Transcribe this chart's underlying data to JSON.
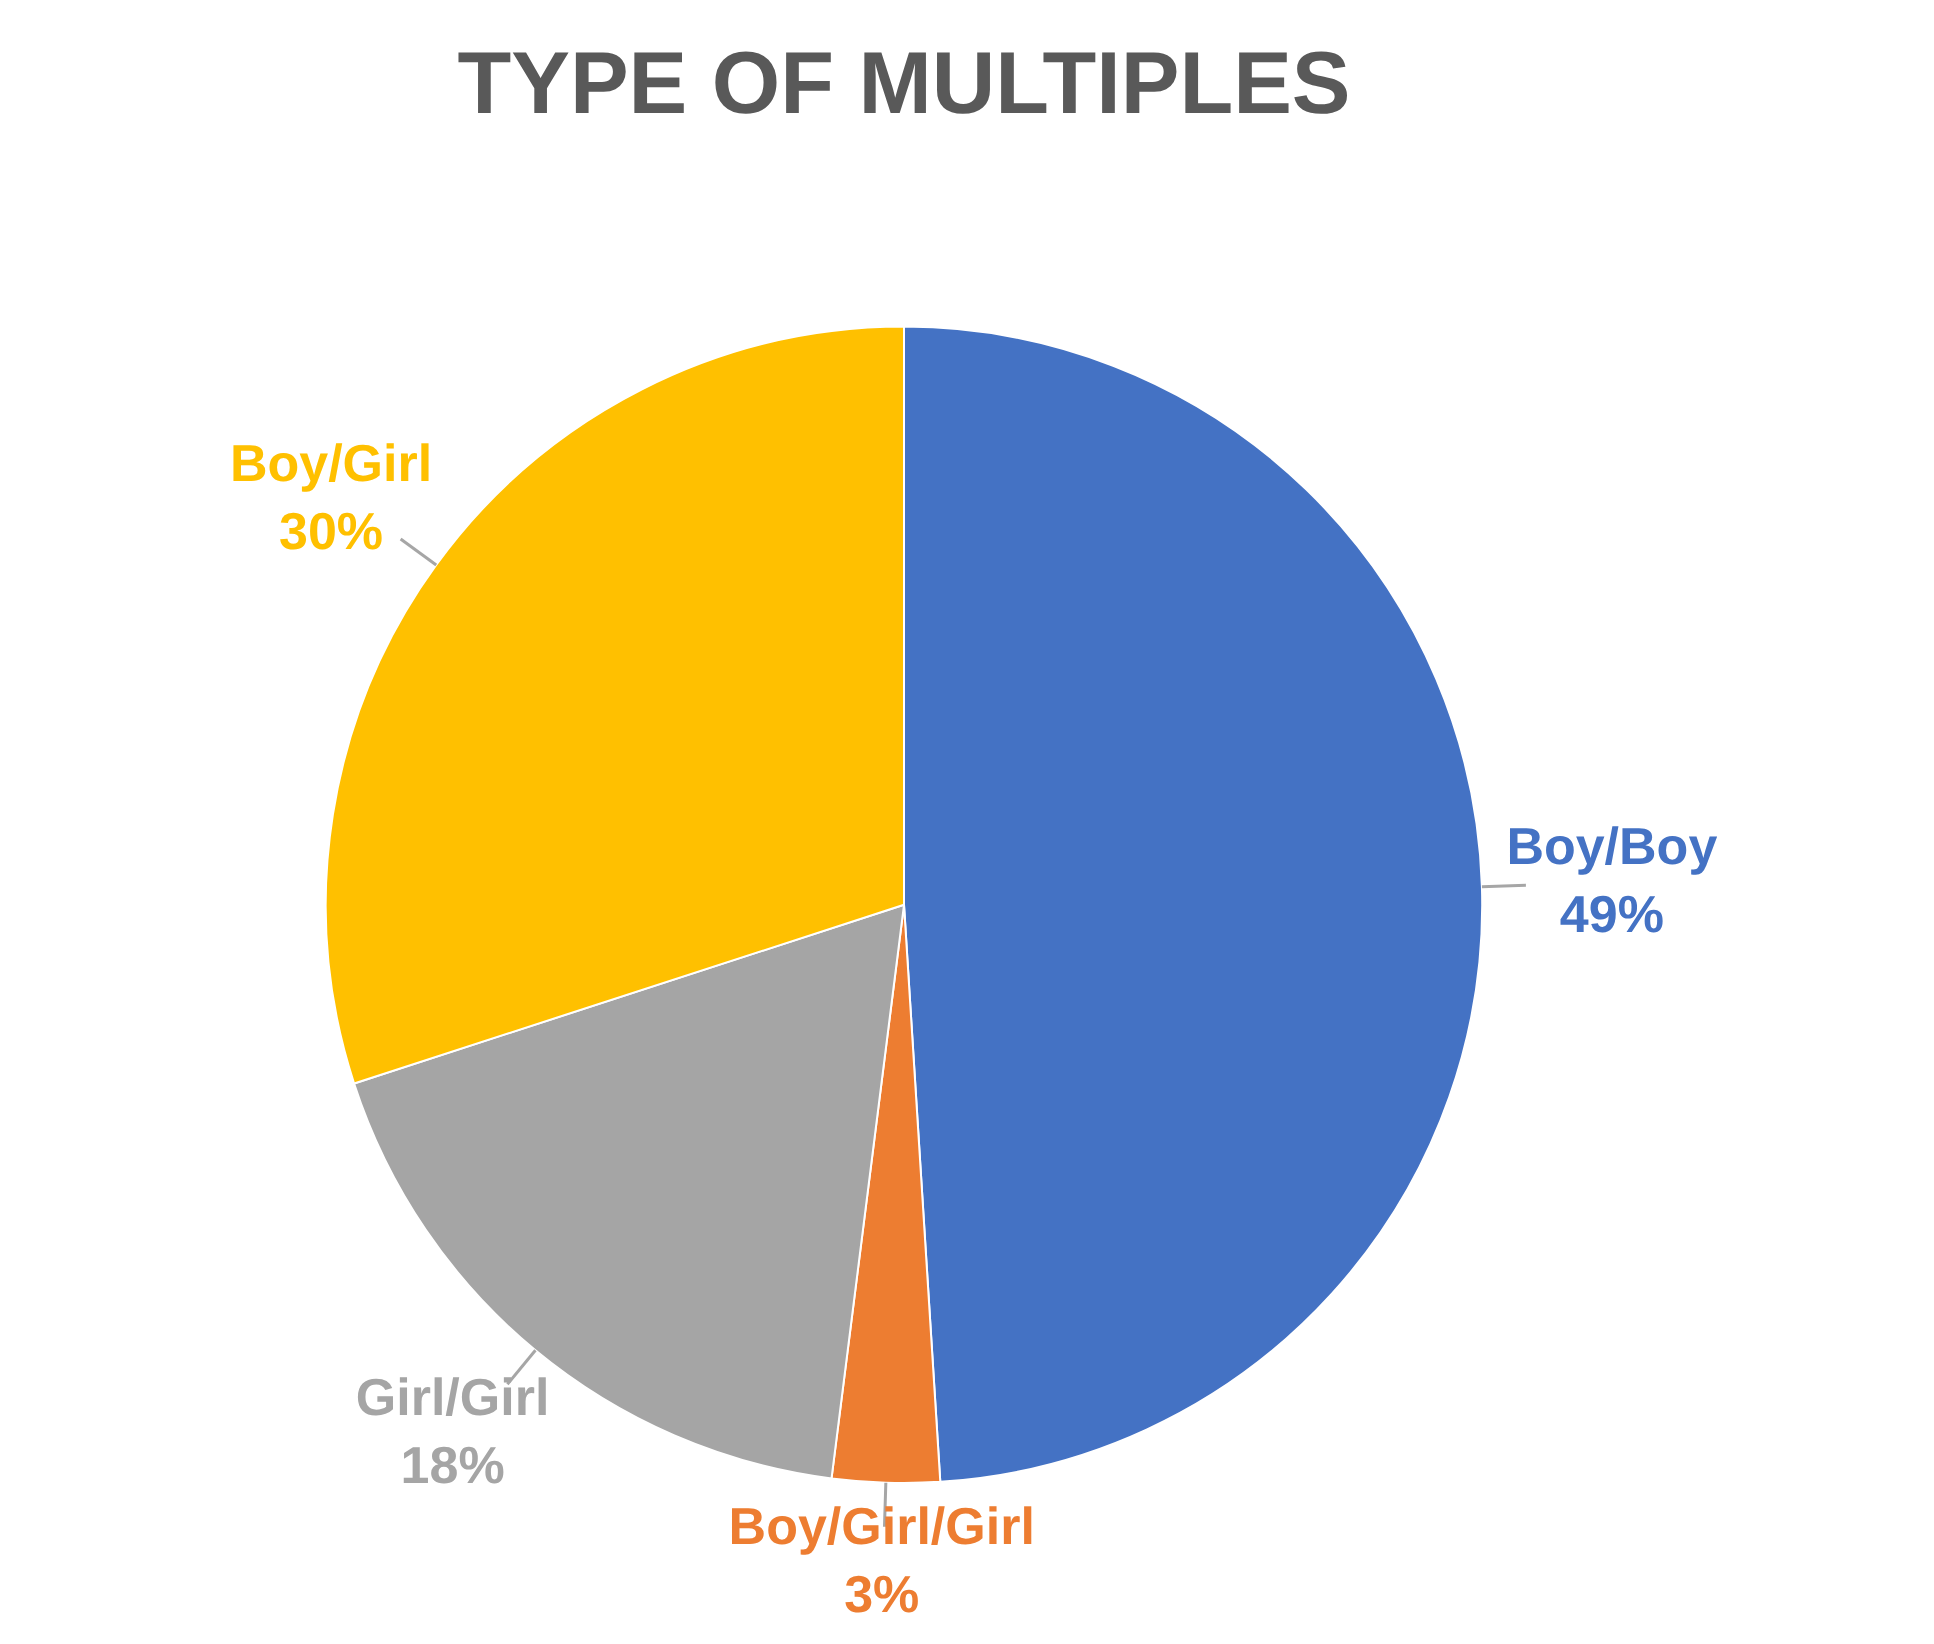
{
  "chart_data": {
    "type": "pie",
    "title": "TYPE OF MULTIPLES",
    "categories": [
      "Boy/Boy",
      "Boy/Girl/Girl",
      "Girl/Girl",
      "Boy/Girl"
    ],
    "values": [
      49,
      3,
      18,
      30
    ],
    "colors": [
      "#4472c4",
      "#ed7d31",
      "#a5a5a5",
      "#ffc000"
    ],
    "value_labels": [
      "49%",
      "3%",
      "18%",
      "30%"
    ],
    "legend": false
  }
}
